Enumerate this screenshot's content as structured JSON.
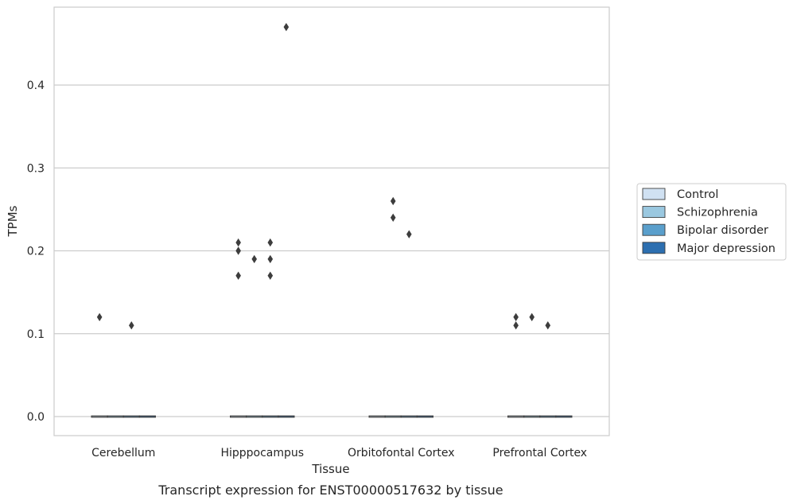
{
  "chart_data": {
    "type": "boxplot",
    "title": "",
    "caption": "Transcript expression for ENST00000517632 by tissue",
    "xlabel": "Tissue",
    "ylabel": "TPMs",
    "ylim": [
      -0.023,
      0.494
    ],
    "yticks": [
      0.0,
      0.1,
      0.2,
      0.3,
      0.4
    ],
    "yticklabels": [
      "0.0",
      "0.1",
      "0.2",
      "0.3",
      "0.4"
    ],
    "grid": "horizontal",
    "legend_position": "right",
    "categories": [
      "Cerebellum",
      "Hipppocampus",
      "Orbitofontal Cortex",
      "Prefrontal Cortex"
    ],
    "series": [
      {
        "name": "Control",
        "color": "#d0e1f2",
        "median": [
          0,
          0,
          0,
          0
        ],
        "outliers": [
          [
            0.12
          ],
          [
            0.17,
            0.2,
            0.21
          ],
          [],
          [
            0.11,
            0.12
          ]
        ]
      },
      {
        "name": "Schizophrenia",
        "color": "#9ac8e0",
        "median": [
          0,
          0,
          0,
          0
        ],
        "outliers": [
          [],
          [
            0.19
          ],
          [
            0.24,
            0.26
          ],
          [
            0.12
          ]
        ]
      },
      {
        "name": "Bipolar disorder",
        "color": "#5a9fcc",
        "median": [
          0,
          0,
          0,
          0
        ],
        "outliers": [
          [
            0.11
          ],
          [
            0.17,
            0.19,
            0.21
          ],
          [
            0.22
          ],
          [
            0.11
          ]
        ]
      },
      {
        "name": "Major depression",
        "color": "#2d6fb0",
        "median": [
          0,
          0,
          0,
          0
        ],
        "outliers": [
          [],
          [
            0.47
          ],
          [],
          []
        ]
      }
    ]
  }
}
